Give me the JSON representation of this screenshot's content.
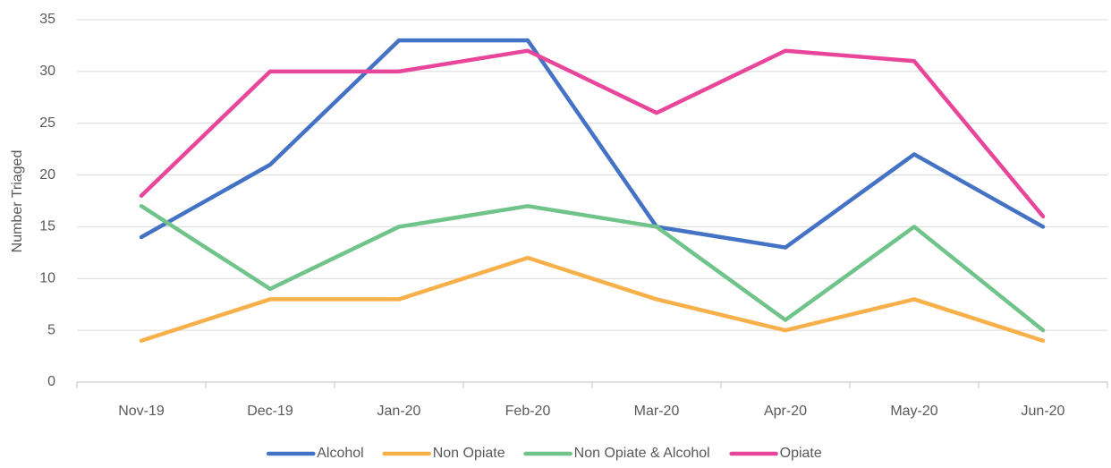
{
  "chart_data": {
    "type": "line",
    "categories": [
      "Nov-19",
      "Dec-19",
      "Jan-20",
      "Feb-20",
      "Mar-20",
      "Apr-20",
      "May-20",
      "Jun-20"
    ],
    "y_label": "Number Triaged",
    "series": [
      {
        "name": "Alcohol",
        "color": "#4472c4",
        "values": [
          14,
          21,
          33,
          33,
          15,
          13,
          22,
          15
        ]
      },
      {
        "name": "Non Opiate",
        "color": "#f8b04a",
        "values": [
          4,
          8,
          8,
          12,
          8,
          5,
          8,
          4
        ]
      },
      {
        "name": "Non Opiate & Alcohol",
        "color": "#70c48a",
        "values": [
          17,
          9,
          15,
          17,
          15,
          6,
          15,
          5
        ]
      },
      {
        "name": "Opiate",
        "color": "#e8469a",
        "values": [
          18,
          30,
          30,
          32,
          26,
          32,
          31,
          16
        ]
      }
    ],
    "ylim": [
      0,
      35
    ],
    "yticks": [
      0,
      5,
      10,
      15,
      20,
      25,
      30,
      35
    ],
    "grid": true,
    "legend": "bottom"
  }
}
